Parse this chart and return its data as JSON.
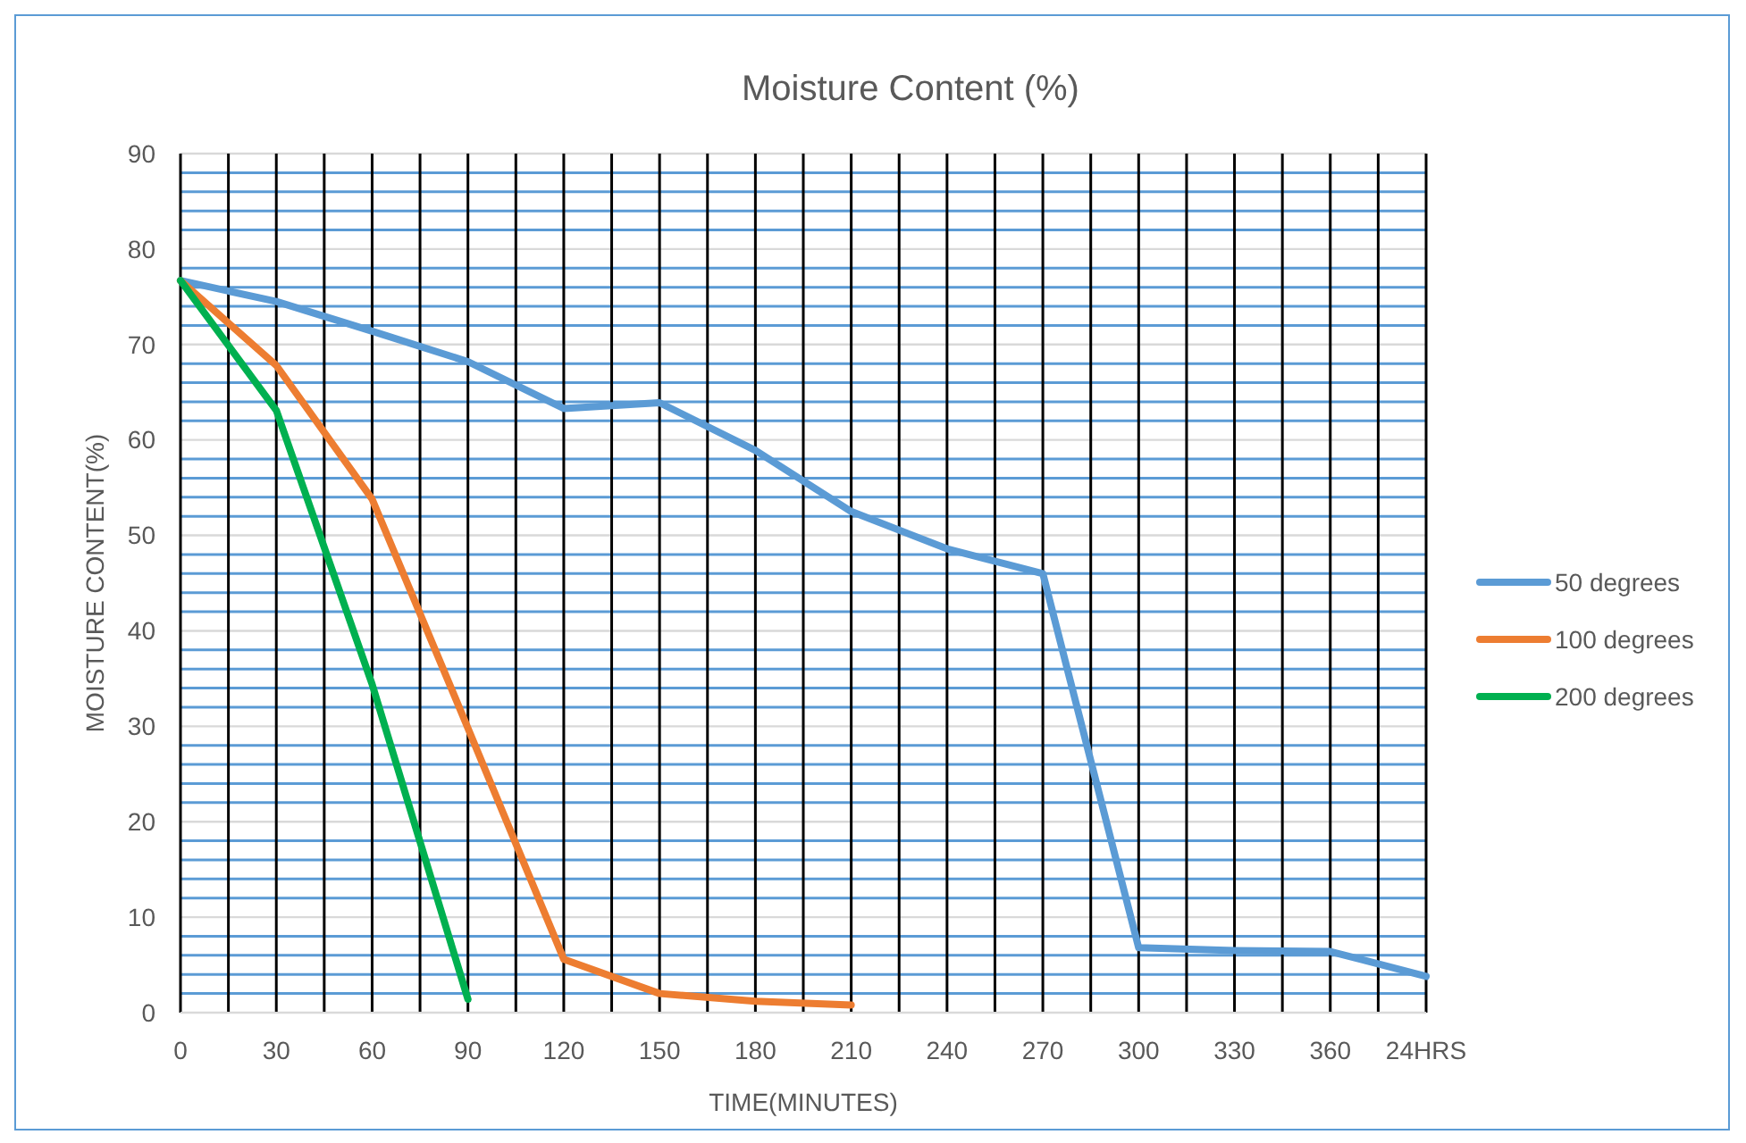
{
  "chart_data": {
    "type": "line",
    "title": "Moisture Content (%)",
    "xlabel": "TIME(MINUTES)",
    "ylabel": "MOISTURE CONTENT(%)",
    "categories": [
      "0",
      null,
      "30",
      null,
      "60",
      null,
      "90",
      null,
      "120",
      null,
      "150",
      null,
      "180",
      null,
      "210",
      null,
      "240",
      null,
      "270",
      null,
      "300",
      null,
      "330",
      null,
      "360",
      null,
      "24HRS"
    ],
    "series": [
      {
        "name": "50 degrees",
        "color": "#5b9bd5",
        "values": [
          76.7,
          null,
          74.5,
          null,
          71.4,
          null,
          68.2,
          null,
          63.3,
          null,
          63.9,
          null,
          58.9,
          null,
          52.5,
          null,
          48.6,
          null,
          46.0,
          null,
          6.8,
          null,
          6.5,
          null,
          6.4,
          null,
          3.8
        ]
      },
      {
        "name": "100 degrees",
        "color": "#ed7d31",
        "values": [
          76.7,
          null,
          67.8,
          null,
          53.8,
          null,
          29.8,
          null,
          5.6,
          null,
          2.0,
          null,
          1.2,
          null,
          0.8,
          null,
          null,
          null,
          null,
          null,
          null,
          null,
          null,
          null,
          null,
          null,
          null
        ]
      },
      {
        "name": "200 degrees",
        "color": "#00b050",
        "values": [
          76.7,
          null,
          63.1,
          null,
          34.4,
          null,
          1.4,
          null,
          null,
          null,
          null,
          null,
          null,
          null,
          null,
          null,
          null,
          null,
          null,
          null,
          null,
          null,
          null,
          null,
          null,
          null,
          null
        ]
      }
    ],
    "ylim": [
      0,
      90
    ],
    "yticks": [
      0,
      {
        "value": 2,
        "label": null
      },
      {
        "value": 4,
        "label": null
      },
      {
        "value": 6,
        "label": null
      },
      {
        "value": 8,
        "label": null
      },
      10,
      {
        "value": 12,
        "label": null
      },
      {
        "value": 14,
        "label": null
      },
      {
        "value": 16,
        "label": null
      },
      {
        "value": 18,
        "label": null
      },
      20,
      {
        "value": 22,
        "label": null
      },
      {
        "value": 24,
        "label": null
      },
      {
        "value": 26,
        "label": null
      },
      {
        "value": 28,
        "label": null
      },
      30,
      {
        "value": 32,
        "label": null
      },
      {
        "value": 34,
        "label": null
      },
      {
        "value": 36,
        "label": null
      },
      {
        "value": 38,
        "label": null
      },
      40,
      {
        "value": 42,
        "label": null
      },
      {
        "value": 44,
        "label": null
      },
      {
        "value": 46,
        "label": null
      },
      {
        "value": 48,
        "label": null
      },
      50,
      {
        "value": 52,
        "label": null
      },
      {
        "value": 54,
        "label": null
      },
      {
        "value": 56,
        "label": null
      },
      {
        "value": 58,
        "label": null
      },
      60,
      {
        "value": 62,
        "label": null
      },
      {
        "value": 64,
        "label": null
      },
      {
        "value": 66,
        "label": null
      },
      {
        "value": 68,
        "label": null
      },
      70,
      {
        "value": 72,
        "label": null
      },
      {
        "value": 74,
        "label": null
      },
      {
        "value": 76,
        "label": null
      },
      {
        "value": 78,
        "label": null
      },
      80,
      {
        "value": 82,
        "label": null
      },
      {
        "value": 84,
        "label": null
      },
      {
        "value": 86,
        "label": null
      },
      {
        "value": 88,
        "label": null
      },
      90
    ],
    "grid": true,
    "legend": "right",
    "marker": "none",
    "line_style": "solid"
  }
}
